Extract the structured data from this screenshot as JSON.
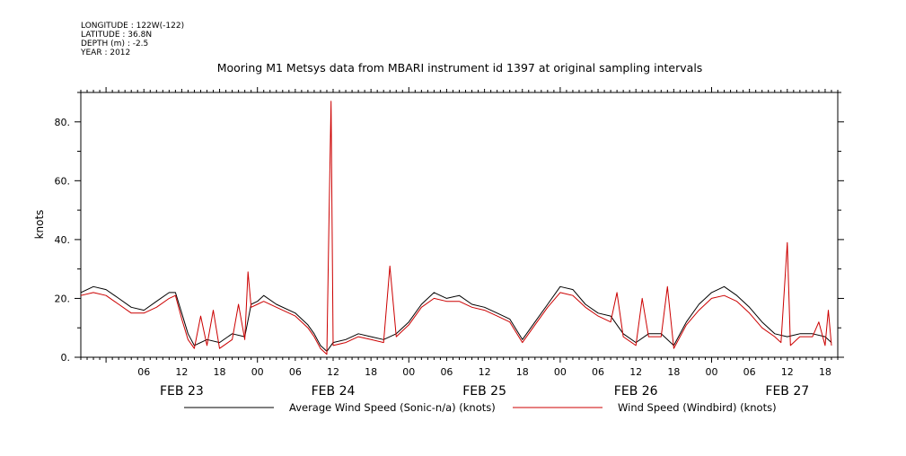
{
  "header": {
    "meta_lines": [
      "LONGITUDE : 122W(-122)",
      "LATITUDE : 36.8N",
      "DEPTH (m) : -2.5",
      "YEAR : 2012"
    ]
  },
  "chart_data": {
    "type": "line",
    "title": "Mooring M1 Metsys data from MBARI instrument id 1397 at original sampling intervals",
    "xlabel": "",
    "ylabel": "knots",
    "ylim": [
      0,
      90
    ],
    "xlim": [
      "2012-02-22T20:00",
      "2012-02-27T20:00"
    ],
    "y_ticks": [
      0,
      20,
      40,
      60,
      80
    ],
    "y_tick_labels": [
      "0.",
      "20.",
      "40.",
      "60.",
      "80."
    ],
    "x_hour_ticks": [
      {
        "t": "2012-02-23T06:00",
        "label": "06"
      },
      {
        "t": "2012-02-23T12:00",
        "label": "12"
      },
      {
        "t": "2012-02-23T18:00",
        "label": "18"
      },
      {
        "t": "2012-02-24T00:00",
        "label": "00"
      },
      {
        "t": "2012-02-24T06:00",
        "label": "06"
      },
      {
        "t": "2012-02-24T12:00",
        "label": "12"
      },
      {
        "t": "2012-02-24T18:00",
        "label": "18"
      },
      {
        "t": "2012-02-25T00:00",
        "label": "00"
      },
      {
        "t": "2012-02-25T06:00",
        "label": "06"
      },
      {
        "t": "2012-02-25T12:00",
        "label": "12"
      },
      {
        "t": "2012-02-25T18:00",
        "label": "18"
      },
      {
        "t": "2012-02-26T00:00",
        "label": "00"
      },
      {
        "t": "2012-02-26T06:00",
        "label": "06"
      },
      {
        "t": "2012-02-26T12:00",
        "label": "12"
      },
      {
        "t": "2012-02-26T18:00",
        "label": "18"
      },
      {
        "t": "2012-02-27T00:00",
        "label": "00"
      },
      {
        "t": "2012-02-27T06:00",
        "label": "06"
      },
      {
        "t": "2012-02-27T12:00",
        "label": "12"
      },
      {
        "t": "2012-02-27T18:00",
        "label": "18"
      }
    ],
    "x_day_labels": [
      {
        "t": "2012-02-23T12:00",
        "label": "FEB 23"
      },
      {
        "t": "2012-02-24T12:00",
        "label": "FEB 24"
      },
      {
        "t": "2012-02-25T12:00",
        "label": "FEB 25"
      },
      {
        "t": "2012-02-26T12:00",
        "label": "FEB 26"
      },
      {
        "t": "2012-02-27T12:00",
        "label": "FEB 27"
      }
    ],
    "grid": false,
    "legend": "bottom",
    "series": [
      {
        "name": "Average Wind Speed (Sonic-n/a) (knots)",
        "color": "#000000",
        "points": [
          [
            "2012-02-22T20:00",
            22
          ],
          [
            "2012-02-22T22:00",
            24
          ],
          [
            "2012-02-23T00:00",
            23
          ],
          [
            "2012-02-23T02:00",
            20
          ],
          [
            "2012-02-23T04:00",
            17
          ],
          [
            "2012-02-23T06:00",
            16
          ],
          [
            "2012-02-23T08:00",
            19
          ],
          [
            "2012-02-23T10:00",
            22
          ],
          [
            "2012-02-23T11:00",
            22
          ],
          [
            "2012-02-23T12:00",
            15
          ],
          [
            "2012-02-23T13:00",
            8
          ],
          [
            "2012-02-23T14:00",
            4
          ],
          [
            "2012-02-23T16:00",
            6
          ],
          [
            "2012-02-23T18:00",
            5
          ],
          [
            "2012-02-23T20:00",
            8
          ],
          [
            "2012-02-23T22:00",
            7
          ],
          [
            "2012-02-23T23:00",
            18
          ],
          [
            "2012-02-24T00:00",
            19
          ],
          [
            "2012-02-24T01:00",
            21
          ],
          [
            "2012-02-24T03:00",
            18
          ],
          [
            "2012-02-24T06:00",
            15
          ],
          [
            "2012-02-24T08:00",
            11
          ],
          [
            "2012-02-24T09:00",
            8
          ],
          [
            "2012-02-24T10:00",
            4
          ],
          [
            "2012-02-24T11:00",
            2
          ],
          [
            "2012-02-24T12:00",
            5
          ],
          [
            "2012-02-24T14:00",
            6
          ],
          [
            "2012-02-24T16:00",
            8
          ],
          [
            "2012-02-24T18:00",
            7
          ],
          [
            "2012-02-24T20:00",
            6
          ],
          [
            "2012-02-24T22:00",
            8
          ],
          [
            "2012-02-25T00:00",
            12
          ],
          [
            "2012-02-25T02:00",
            18
          ],
          [
            "2012-02-25T04:00",
            22
          ],
          [
            "2012-02-25T06:00",
            20
          ],
          [
            "2012-02-25T08:00",
            21
          ],
          [
            "2012-02-25T10:00",
            18
          ],
          [
            "2012-02-25T12:00",
            17
          ],
          [
            "2012-02-25T14:00",
            15
          ],
          [
            "2012-02-25T16:00",
            13
          ],
          [
            "2012-02-25T18:00",
            6
          ],
          [
            "2012-02-25T20:00",
            12
          ],
          [
            "2012-02-25T22:00",
            18
          ],
          [
            "2012-02-26T00:00",
            24
          ],
          [
            "2012-02-26T02:00",
            23
          ],
          [
            "2012-02-26T04:00",
            18
          ],
          [
            "2012-02-26T06:00",
            15
          ],
          [
            "2012-02-26T08:00",
            14
          ],
          [
            "2012-02-26T10:00",
            8
          ],
          [
            "2012-02-26T12:00",
            5
          ],
          [
            "2012-02-26T14:00",
            8
          ],
          [
            "2012-02-26T16:00",
            8
          ],
          [
            "2012-02-26T18:00",
            4
          ],
          [
            "2012-02-26T20:00",
            12
          ],
          [
            "2012-02-26T22:00",
            18
          ],
          [
            "2012-02-27T00:00",
            22
          ],
          [
            "2012-02-27T02:00",
            24
          ],
          [
            "2012-02-27T04:00",
            21
          ],
          [
            "2012-02-27T06:00",
            17
          ],
          [
            "2012-02-27T08:00",
            12
          ],
          [
            "2012-02-27T10:00",
            8
          ],
          [
            "2012-02-27T12:00",
            7
          ],
          [
            "2012-02-27T14:00",
            8
          ],
          [
            "2012-02-27T16:00",
            8
          ],
          [
            "2012-02-27T18:00",
            7
          ],
          [
            "2012-02-27T19:00",
            5
          ]
        ]
      },
      {
        "name": "Wind Speed (Windbird) (knots)",
        "color": "#cc0000",
        "points": [
          [
            "2012-02-22T20:00",
            21
          ],
          [
            "2012-02-22T22:00",
            22
          ],
          [
            "2012-02-23T00:00",
            21
          ],
          [
            "2012-02-23T02:00",
            18
          ],
          [
            "2012-02-23T04:00",
            15
          ],
          [
            "2012-02-23T06:00",
            15
          ],
          [
            "2012-02-23T08:00",
            17
          ],
          [
            "2012-02-23T10:00",
            20
          ],
          [
            "2012-02-23T11:00",
            21
          ],
          [
            "2012-02-23T12:00",
            13
          ],
          [
            "2012-02-23T13:00",
            6
          ],
          [
            "2012-02-23T14:00",
            3
          ],
          [
            "2012-02-23T15:00",
            14
          ],
          [
            "2012-02-23T16:00",
            4
          ],
          [
            "2012-02-23T17:00",
            16
          ],
          [
            "2012-02-23T18:00",
            3
          ],
          [
            "2012-02-23T20:00",
            6
          ],
          [
            "2012-02-23T21:00",
            18
          ],
          [
            "2012-02-23T22:00",
            6
          ],
          [
            "2012-02-23T22:30",
            29
          ],
          [
            "2012-02-23T23:00",
            17
          ],
          [
            "2012-02-24T00:00",
            18
          ],
          [
            "2012-02-24T01:00",
            19
          ],
          [
            "2012-02-24T03:00",
            17
          ],
          [
            "2012-02-24T06:00",
            14
          ],
          [
            "2012-02-24T08:00",
            10
          ],
          [
            "2012-02-24T09:00",
            7
          ],
          [
            "2012-02-24T10:00",
            3
          ],
          [
            "2012-02-24T11:00",
            1
          ],
          [
            "2012-02-24T11:20",
            45
          ],
          [
            "2012-02-24T11:40",
            87
          ],
          [
            "2012-02-24T12:00",
            4
          ],
          [
            "2012-02-24T14:00",
            5
          ],
          [
            "2012-02-24T16:00",
            7
          ],
          [
            "2012-02-24T18:00",
            6
          ],
          [
            "2012-02-24T20:00",
            5
          ],
          [
            "2012-02-24T21:00",
            31
          ],
          [
            "2012-02-24T22:00",
            7
          ],
          [
            "2012-02-25T00:00",
            11
          ],
          [
            "2012-02-25T02:00",
            17
          ],
          [
            "2012-02-25T04:00",
            20
          ],
          [
            "2012-02-25T06:00",
            19
          ],
          [
            "2012-02-25T08:00",
            19
          ],
          [
            "2012-02-25T10:00",
            17
          ],
          [
            "2012-02-25T12:00",
            16
          ],
          [
            "2012-02-25T14:00",
            14
          ],
          [
            "2012-02-25T16:00",
            12
          ],
          [
            "2012-02-25T18:00",
            5
          ],
          [
            "2012-02-25T20:00",
            11
          ],
          [
            "2012-02-25T22:00",
            17
          ],
          [
            "2012-02-26T00:00",
            22
          ],
          [
            "2012-02-26T02:00",
            21
          ],
          [
            "2012-02-26T04:00",
            17
          ],
          [
            "2012-02-26T06:00",
            14
          ],
          [
            "2012-02-26T08:00",
            12
          ],
          [
            "2012-02-26T09:00",
            22
          ],
          [
            "2012-02-26T10:00",
            7
          ],
          [
            "2012-02-26T12:00",
            4
          ],
          [
            "2012-02-26T13:00",
            20
          ],
          [
            "2012-02-26T14:00",
            7
          ],
          [
            "2012-02-26T16:00",
            7
          ],
          [
            "2012-02-26T17:00",
            24
          ],
          [
            "2012-02-26T18:00",
            3
          ],
          [
            "2012-02-26T20:00",
            11
          ],
          [
            "2012-02-26T22:00",
            16
          ],
          [
            "2012-02-27T00:00",
            20
          ],
          [
            "2012-02-27T02:00",
            21
          ],
          [
            "2012-02-27T04:00",
            19
          ],
          [
            "2012-02-27T06:00",
            15
          ],
          [
            "2012-02-27T08:00",
            10
          ],
          [
            "2012-02-27T10:00",
            7
          ],
          [
            "2012-02-27T11:00",
            5
          ],
          [
            "2012-02-27T12:00",
            39
          ],
          [
            "2012-02-27T12:30",
            4
          ],
          [
            "2012-02-27T14:00",
            7
          ],
          [
            "2012-02-27T16:00",
            7
          ],
          [
            "2012-02-27T17:00",
            12
          ],
          [
            "2012-02-27T18:00",
            4
          ],
          [
            "2012-02-27T18:30",
            16
          ],
          [
            "2012-02-27T19:00",
            4
          ]
        ]
      }
    ]
  }
}
